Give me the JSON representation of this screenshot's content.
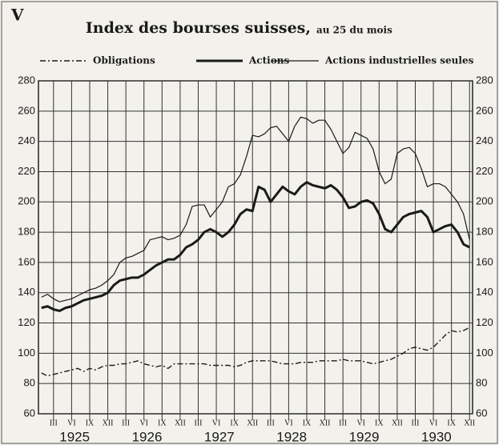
{
  "chart_data": {
    "type": "line",
    "label": "V",
    "title": "Index des bourses suisses,",
    "subtitle": "au 25 du mois",
    "categories": [
      null,
      null,
      "III",
      null,
      null,
      "VI",
      null,
      null,
      "IX",
      null,
      null,
      "XII",
      null,
      null,
      "III",
      null,
      null,
      "VI",
      null,
      null,
      "IX",
      null,
      null,
      "XII",
      null,
      null,
      "III",
      null,
      null,
      "VI",
      null,
      null,
      "IX",
      null,
      null,
      "XII",
      null,
      null,
      "III",
      null,
      null,
      "VI",
      null,
      null,
      "IX",
      null,
      null,
      "XII",
      null,
      null,
      "III",
      null,
      null,
      "VI",
      null,
      null,
      "IX",
      null,
      null,
      "XII",
      null,
      null,
      "III",
      null,
      null,
      "VI",
      null,
      null,
      "IX",
      null,
      null,
      "XII"
    ],
    "years": [
      "1925",
      "1926",
      "1927",
      "1928",
      "1929",
      "1930"
    ],
    "ylim": [
      60,
      280
    ],
    "yticks": [
      60,
      80,
      100,
      120,
      140,
      160,
      180,
      200,
      220,
      240,
      260,
      280
    ],
    "grid": true,
    "series": [
      {
        "name": "Obligations",
        "color": "#1a1a1a",
        "linestyle": "dashdot",
        "linewidth": 1.4,
        "values": [
          87,
          85,
          86,
          87,
          88,
          89,
          90,
          88,
          90,
          89,
          91,
          92,
          92,
          93,
          93,
          94,
          95,
          93,
          92,
          91,
          92,
          90,
          93,
          93,
          93,
          93,
          93,
          93,
          92,
          92,
          92,
          92,
          91,
          92,
          94,
          95,
          95,
          95,
          95,
          94,
          93,
          93,
          93,
          94,
          94,
          94,
          95,
          95,
          95,
          95,
          96,
          95,
          95,
          95,
          94,
          93,
          94,
          95,
          96,
          98,
          100,
          103,
          104,
          103,
          102,
          104,
          108,
          112,
          115,
          114,
          115,
          117
        ]
      },
      {
        "name": "Actions",
        "color": "#1a1a1a",
        "linestyle": "solid",
        "linewidth": 3,
        "values": [
          130,
          131,
          129,
          128,
          130,
          131,
          133,
          135,
          136,
          137,
          138,
          140,
          145,
          148,
          149,
          150,
          150,
          152,
          155,
          158,
          160,
          162,
          162,
          165,
          170,
          172,
          175,
          180,
          182,
          180,
          177,
          180,
          185,
          192,
          195,
          194,
          210,
          208,
          200,
          205,
          210,
          207,
          205,
          210,
          213,
          211,
          210,
          209,
          211,
          208,
          203,
          196,
          197,
          200,
          201,
          199,
          192,
          182,
          180,
          185,
          190,
          192,
          193,
          194,
          190,
          180,
          182,
          184,
          185,
          180,
          172,
          170
        ]
      },
      {
        "name": "Actions industrielles seules",
        "color": "#1a1a1a",
        "linestyle": "solid",
        "linewidth": 1.2,
        "values": [
          137,
          139,
          136,
          134,
          135,
          136,
          138,
          140,
          142,
          143,
          145,
          148,
          152,
          160,
          163,
          164,
          166,
          168,
          175,
          176,
          177,
          175,
          176,
          178,
          185,
          197,
          198,
          198,
          190,
          195,
          200,
          210,
          212,
          218,
          230,
          244,
          243,
          245,
          249,
          250,
          245,
          240,
          250,
          256,
          255,
          252,
          254,
          254,
          248,
          240,
          232,
          236,
          246,
          244,
          242,
          235,
          220,
          212,
          215,
          232,
          235,
          236,
          232,
          222,
          210,
          212,
          212,
          210,
          205,
          200,
          192,
          175
        ]
      }
    ]
  }
}
